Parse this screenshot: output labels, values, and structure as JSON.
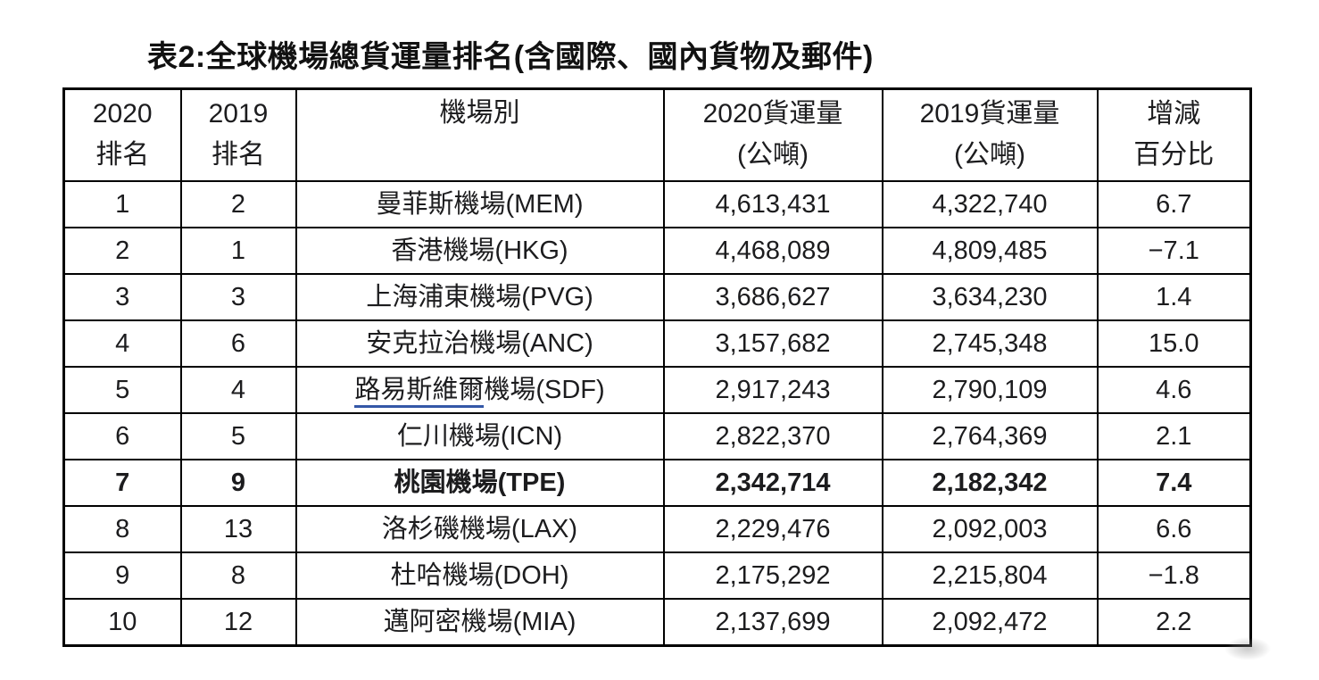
{
  "title": "表2:全球機場總貨運量排名(含國際、國內貨物及郵件)",
  "colors": {
    "text": "#1c1c1e",
    "border": "#000000",
    "underline_accent": "#3457a7",
    "background": "#ffffff"
  },
  "table": {
    "headers": [
      {
        "line1": "2020",
        "line2": "排名"
      },
      {
        "line1": "2019",
        "line2": "排名"
      },
      {
        "line1": "機場別",
        "line2": ""
      },
      {
        "line1": "2020貨運量",
        "line2": "(公噸)"
      },
      {
        "line1": "2019貨運量",
        "line2": "(公噸)"
      },
      {
        "line1": "增減",
        "line2": "百分比"
      }
    ],
    "rows": [
      {
        "rank2020": "1",
        "rank2019": "2",
        "airport_u": "",
        "airport_text": "曼菲斯機場(MEM)",
        "cargo2020": "4,613,431",
        "cargo2019": "4,322,740",
        "change": "6.7",
        "bold": false
      },
      {
        "rank2020": "2",
        "rank2019": "1",
        "airport_u": "",
        "airport_text": "香港機場(HKG)",
        "cargo2020": "4,468,089",
        "cargo2019": "4,809,485",
        "change": "−7.1",
        "bold": false
      },
      {
        "rank2020": "3",
        "rank2019": "3",
        "airport_u": "",
        "airport_text": "上海浦東機場(PVG)",
        "cargo2020": "3,686,627",
        "cargo2019": "3,634,230",
        "change": "1.4",
        "bold": false
      },
      {
        "rank2020": "4",
        "rank2019": "6",
        "airport_u": "",
        "airport_text": "安克拉治機場(ANC)",
        "cargo2020": "3,157,682",
        "cargo2019": "2,745,348",
        "change": "15.0",
        "bold": false
      },
      {
        "rank2020": "5",
        "rank2019": "4",
        "airport_u": "路易斯維爾",
        "airport_text": "機場(SDF)",
        "cargo2020": "2,917,243",
        "cargo2019": "2,790,109",
        "change": "4.6",
        "bold": false
      },
      {
        "rank2020": "6",
        "rank2019": "5",
        "airport_u": "",
        "airport_text": "仁川機場(ICN)",
        "cargo2020": "2,822,370",
        "cargo2019": "2,764,369",
        "change": "2.1",
        "bold": false
      },
      {
        "rank2020": "7",
        "rank2019": "9",
        "airport_u": "",
        "airport_text": "桃園機場(TPE)",
        "cargo2020": "2,342,714",
        "cargo2019": "2,182,342",
        "change": "7.4",
        "bold": true
      },
      {
        "rank2020": "8",
        "rank2019": "13",
        "airport_u": "",
        "airport_text": "洛杉磯機場(LAX)",
        "cargo2020": "2,229,476",
        "cargo2019": "2,092,003",
        "change": "6.6",
        "bold": false
      },
      {
        "rank2020": "9",
        "rank2019": "8",
        "airport_u": "",
        "airport_text": "杜哈機場(DOH)",
        "cargo2020": "2,175,292",
        "cargo2019": "2,215,804",
        "change": "−1.8",
        "bold": false
      },
      {
        "rank2020": "10",
        "rank2019": "12",
        "airport_u": "",
        "airport_text": "邁阿密機場(MIA)",
        "cargo2020": "2,137,699",
        "cargo2019": "2,092,472",
        "change": "2.2",
        "bold": false
      }
    ]
  }
}
